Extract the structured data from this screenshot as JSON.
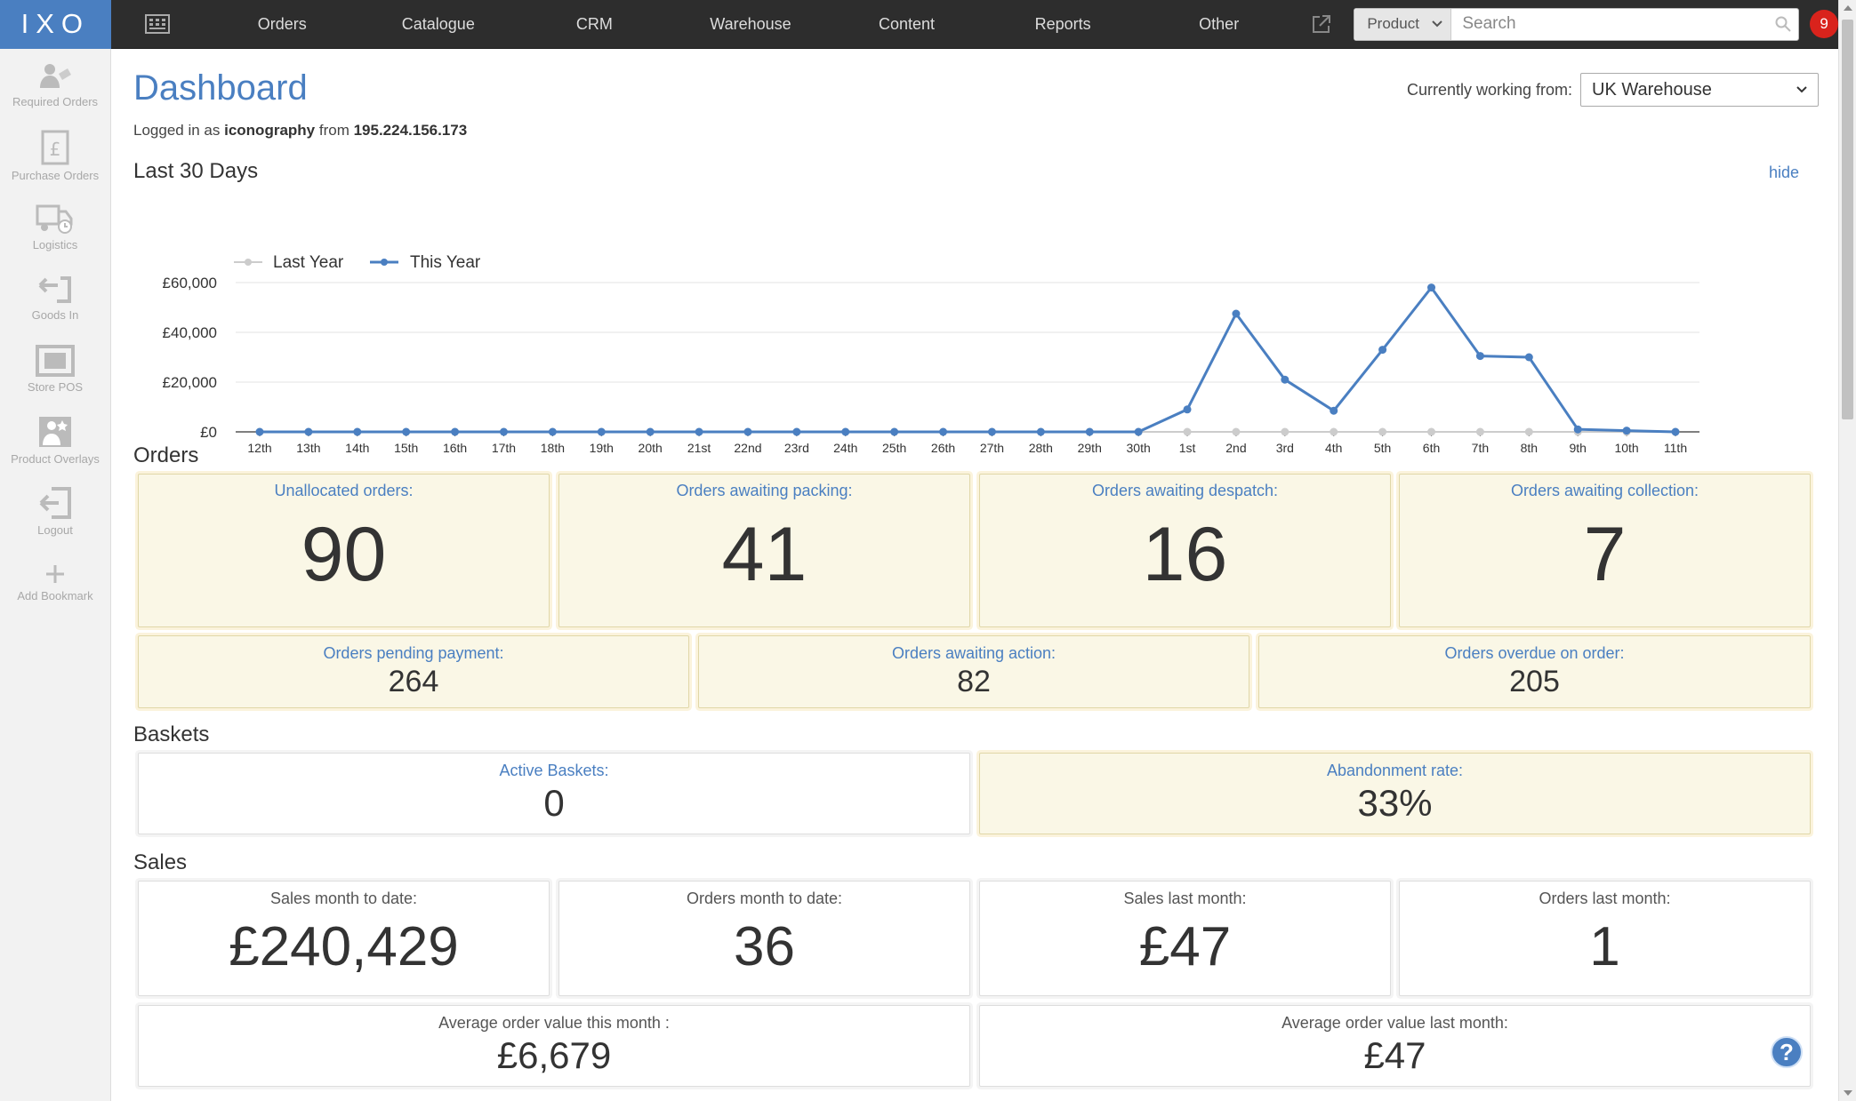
{
  "topbar": {
    "logo": "IXO",
    "nav": [
      "Orders",
      "Catalogue",
      "CRM",
      "Warehouse",
      "Content",
      "Reports",
      "Other"
    ],
    "search": {
      "scope": "Product",
      "placeholder": "Search"
    },
    "notifications": "9"
  },
  "sidebar": {
    "items": [
      {
        "label": "Required Orders",
        "icon": "required-orders-icon"
      },
      {
        "label": "Purchase Orders",
        "icon": "purchase-orders-icon"
      },
      {
        "label": "Logistics",
        "icon": "logistics-icon"
      },
      {
        "label": "Goods In",
        "icon": "goods-in-icon"
      },
      {
        "label": "Store POS",
        "icon": "store-pos-icon"
      },
      {
        "label": "Product Overlays",
        "icon": "product-overlays-icon"
      },
      {
        "label": "Logout",
        "icon": "logout-icon"
      },
      {
        "label": "Add Bookmark",
        "icon": "add-bookmark-icon"
      }
    ]
  },
  "header": {
    "title": "Dashboard",
    "logged_prefix": "Logged in as",
    "user": "iconography",
    "from_word": "from",
    "ip": "195.224.156.173",
    "working_label": "Currently working from:",
    "warehouse": "UK Warehouse"
  },
  "last30": {
    "title": "Last 30 Days",
    "hide": "hide"
  },
  "chart_data": {
    "type": "line",
    "categories": [
      "12th",
      "13th",
      "14th",
      "15th",
      "16th",
      "17th",
      "18th",
      "19th",
      "20th",
      "21st",
      "22nd",
      "23rd",
      "24th",
      "25th",
      "26th",
      "27th",
      "28th",
      "29th",
      "30th",
      "1st",
      "2nd",
      "3rd",
      "4th",
      "5th",
      "6th",
      "7th",
      "8th",
      "9th",
      "10th",
      "11th"
    ],
    "series": [
      {
        "name": "Last Year",
        "color": "#cccccc",
        "values": [
          0,
          0,
          0,
          0,
          0,
          0,
          0,
          0,
          0,
          0,
          0,
          0,
          0,
          0,
          0,
          0,
          0,
          0,
          0,
          0,
          0,
          0,
          0,
          0,
          0,
          0,
          0,
          0,
          0,
          0
        ]
      },
      {
        "name": "This Year",
        "color": "#4a7fc1",
        "values": [
          0,
          0,
          0,
          0,
          0,
          0,
          0,
          0,
          0,
          0,
          0,
          0,
          0,
          0,
          0,
          0,
          0,
          0,
          0,
          9000,
          47500,
          21000,
          8500,
          33000,
          58000,
          30500,
          30000,
          1000,
          500,
          0
        ]
      }
    ],
    "yticks": [
      "£60,000",
      "£40,000",
      "£20,000",
      "£0"
    ],
    "ylim": [
      0,
      60000
    ],
    "legend": "top-left",
    "grid": true
  },
  "orders": {
    "title": "Orders",
    "big": [
      {
        "label": "Unallocated orders:",
        "value": "90"
      },
      {
        "label": "Orders awaiting packing:",
        "value": "41"
      },
      {
        "label": "Orders awaiting despatch:",
        "value": "16"
      },
      {
        "label": "Orders awaiting collection:",
        "value": "7"
      }
    ],
    "small": [
      {
        "label": "Orders pending payment:",
        "value": "264"
      },
      {
        "label": "Orders awaiting action:",
        "value": "82"
      },
      {
        "label": "Orders overdue on order:",
        "value": "205"
      }
    ]
  },
  "baskets": {
    "title": "Baskets",
    "tiles": [
      {
        "label": "Active Baskets:",
        "value": "0"
      },
      {
        "label": "Abandonment rate:",
        "value": "33%"
      }
    ]
  },
  "sales": {
    "title": "Sales",
    "big": [
      {
        "label": "Sales month to date:",
        "value": "£240,429"
      },
      {
        "label": "Orders month to date:",
        "value": "36"
      },
      {
        "label": "Sales last month:",
        "value": "£47"
      },
      {
        "label": "Orders last month:",
        "value": "1"
      }
    ],
    "avg": [
      {
        "label": "Average order value this month :",
        "value": "£6,679"
      },
      {
        "label": "Average order value last month:",
        "value": "£47"
      }
    ]
  },
  "help": "?"
}
